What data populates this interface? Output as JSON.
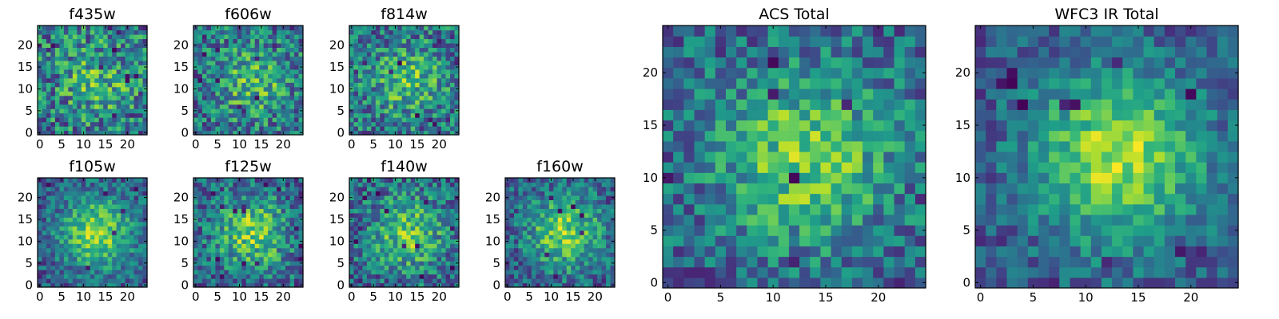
{
  "chart_data": [
    {
      "type": "heatmap",
      "title": "f435w",
      "grid_size": 25,
      "xlim": [
        0,
        24
      ],
      "ylim": [
        0,
        24
      ],
      "xticks": [
        "0",
        "5",
        "10",
        "15",
        "20"
      ],
      "yticks": [
        "0",
        "5",
        "10",
        "15",
        "20"
      ],
      "colormap": "viridis",
      "seed": 11,
      "center_strength": 0.25,
      "noise": 0.55,
      "dark_pixels": 10
    },
    {
      "type": "heatmap",
      "title": "f606w",
      "grid_size": 25,
      "xlim": [
        0,
        24
      ],
      "ylim": [
        0,
        24
      ],
      "xticks": [
        "0",
        "5",
        "10",
        "15",
        "20"
      ],
      "yticks": [
        "0",
        "5",
        "10",
        "15",
        "20"
      ],
      "colormap": "viridis",
      "seed": 23,
      "center_strength": 0.3,
      "noise": 0.5,
      "dark_pixels": 12
    },
    {
      "type": "heatmap",
      "title": "f814w",
      "grid_size": 25,
      "xlim": [
        0,
        24
      ],
      "ylim": [
        0,
        24
      ],
      "xticks": [
        "0",
        "5",
        "10",
        "15",
        "20"
      ],
      "yticks": [
        "0",
        "5",
        "10",
        "15",
        "20"
      ],
      "colormap": "viridis",
      "seed": 37,
      "center_strength": 0.3,
      "noise": 0.5,
      "dark_pixels": 10
    },
    {
      "type": "heatmap",
      "title": "f105w",
      "grid_size": 25,
      "xlim": [
        0,
        24
      ],
      "ylim": [
        0,
        24
      ],
      "xticks": [
        "0",
        "5",
        "10",
        "15",
        "20"
      ],
      "yticks": [
        "0",
        "5",
        "10",
        "15",
        "20"
      ],
      "colormap": "viridis",
      "seed": 41,
      "center_strength": 0.55,
      "noise": 0.35,
      "dark_pixels": 6
    },
    {
      "type": "heatmap",
      "title": "f125w",
      "grid_size": 25,
      "xlim": [
        0,
        24
      ],
      "ylim": [
        0,
        24
      ],
      "xticks": [
        "0",
        "5",
        "10",
        "15",
        "20"
      ],
      "yticks": [
        "0",
        "5",
        "10",
        "15",
        "20"
      ],
      "colormap": "viridis",
      "seed": 53,
      "center_strength": 0.45,
      "noise": 0.45,
      "dark_pixels": 14
    },
    {
      "type": "heatmap",
      "title": "f140w",
      "grid_size": 25,
      "xlim": [
        0,
        24
      ],
      "ylim": [
        0,
        24
      ],
      "xticks": [
        "0",
        "5",
        "10",
        "15",
        "20"
      ],
      "yticks": [
        "0",
        "5",
        "10",
        "15",
        "20"
      ],
      "colormap": "viridis",
      "seed": 67,
      "center_strength": 0.4,
      "noise": 0.45,
      "dark_pixels": 14
    },
    {
      "type": "heatmap",
      "title": "f160w",
      "grid_size": 25,
      "xlim": [
        0,
        24
      ],
      "ylim": [
        0,
        24
      ],
      "xticks": [
        "0",
        "5",
        "10",
        "15",
        "20"
      ],
      "yticks": [
        "0",
        "5",
        "10",
        "15",
        "20"
      ],
      "colormap": "viridis",
      "seed": 79,
      "center_strength": 0.5,
      "noise": 0.4,
      "dark_pixels": 8
    },
    {
      "type": "heatmap",
      "title": "ACS Total",
      "grid_size": 25,
      "xlim": [
        0,
        24
      ],
      "ylim": [
        0,
        24
      ],
      "xticks": [
        "0",
        "5",
        "10",
        "15",
        "20"
      ],
      "yticks": [
        "0",
        "5",
        "10",
        "15",
        "20"
      ],
      "colormap": "viridis",
      "seed": 97,
      "center_strength": 0.45,
      "noise": 0.4,
      "dark_pixels": 8
    },
    {
      "type": "heatmap",
      "title": "WFC3 IR Total",
      "grid_size": 25,
      "xlim": [
        0,
        24
      ],
      "ylim": [
        0,
        24
      ],
      "xticks": [
        "0",
        "5",
        "10",
        "15",
        "20"
      ],
      "yticks": [
        "0",
        "5",
        "10",
        "15",
        "20"
      ],
      "colormap": "viridis",
      "seed": 113,
      "center_strength": 0.6,
      "noise": 0.3,
      "dark_pixels": 12
    }
  ]
}
